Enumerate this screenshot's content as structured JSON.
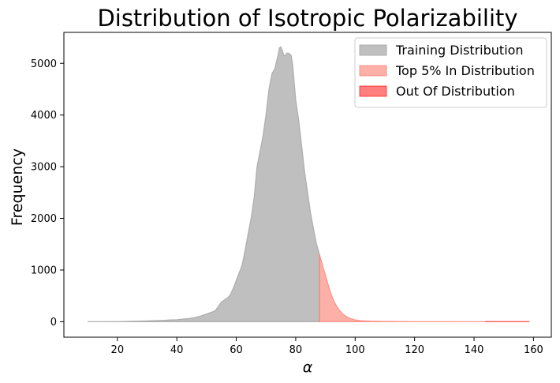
{
  "chart_data": {
    "type": "area",
    "title": "Distribution of Isotropic Polarizability",
    "xlabel": "α",
    "ylabel": "Frequency",
    "xlim": [
      2,
      166
    ],
    "ylim": [
      -300,
      5600
    ],
    "xticks": [
      20,
      40,
      60,
      80,
      100,
      120,
      140,
      160
    ],
    "yticks": [
      0,
      1000,
      2000,
      3000,
      4000,
      5000
    ],
    "legend_position": "top-right",
    "grid": false,
    "series": [
      {
        "name": "Training Distribution",
        "color": "#a9a9a9",
        "opacity": 0.75,
        "x": [
          10,
          20,
          25,
          30,
          35,
          38,
          40,
          42,
          44,
          46,
          48,
          50,
          52,
          53,
          54,
          55,
          56,
          57,
          58,
          59,
          60,
          61,
          62,
          63,
          64,
          65,
          66,
          67,
          68,
          69,
          70,
          71,
          72,
          73,
          74,
          74.5,
          75,
          75.5,
          76,
          76.5,
          77,
          77.5,
          78,
          78.5,
          79,
          80,
          81,
          82,
          83,
          84,
          85,
          86,
          87,
          88
        ],
        "y": [
          0,
          3,
          8,
          15,
          25,
          35,
          40,
          50,
          60,
          80,
          110,
          150,
          190,
          220,
          300,
          380,
          420,
          460,
          520,
          650,
          800,
          950,
          1100,
          1400,
          1700,
          2000,
          2400,
          3000,
          3300,
          3600,
          4000,
          4500,
          4800,
          4900,
          5150,
          5300,
          5320,
          5250,
          5150,
          5150,
          5200,
          5200,
          5180,
          5150,
          4950,
          4300,
          3900,
          3400,
          2900,
          2500,
          2100,
          1800,
          1500,
          1300
        ]
      },
      {
        "name": "Top 5% In Distribution",
        "color": "#fa8072",
        "opacity": 0.62,
        "x": [
          88,
          89,
          90,
          91,
          92,
          93,
          94,
          95,
          96,
          97,
          98,
          99,
          100,
          102,
          105,
          110,
          115,
          120,
          130,
          140,
          144
        ],
        "y": [
          1300,
          1100,
          900,
          700,
          520,
          380,
          280,
          200,
          140,
          100,
          70,
          50,
          35,
          20,
          12,
          6,
          4,
          3,
          2,
          1,
          1
        ]
      },
      {
        "name": "Out Of Distribution",
        "color": "#ff0000",
        "opacity": 0.5,
        "x": [
          144,
          148,
          152,
          156,
          158.5
        ],
        "y": [
          3,
          3,
          2,
          2,
          2
        ]
      }
    ]
  }
}
